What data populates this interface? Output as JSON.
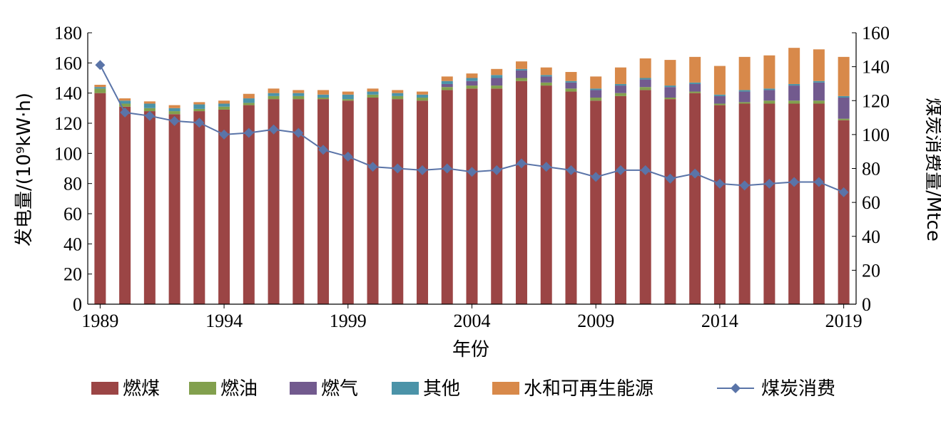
{
  "chart_data": {
    "type": "bar",
    "stacked": true,
    "xlabel": "年份",
    "ylabel": "发电量/(10⁹kW·h)",
    "y2label": "煤炭消费量/Mtce",
    "ylim": [
      0,
      180
    ],
    "y2lim": [
      0,
      160
    ],
    "yticks": [
      0,
      20,
      40,
      60,
      80,
      100,
      120,
      140,
      160,
      180
    ],
    "y2ticks": [
      0,
      20,
      40,
      60,
      80,
      100,
      120,
      140,
      160
    ],
    "xtick_labels": [
      "1989",
      "1994",
      "1999",
      "2004",
      "2009",
      "2014",
      "2019"
    ],
    "grid": false,
    "legend_position": "bottom",
    "years": [
      1989,
      1990,
      1991,
      1992,
      1993,
      1994,
      1995,
      1996,
      1997,
      1998,
      1999,
      2000,
      2001,
      2002,
      2003,
      2004,
      2005,
      2006,
      2007,
      2008,
      2009,
      2010,
      2011,
      2012,
      2013,
      2014,
      2015,
      2016,
      2017,
      2018,
      2019
    ],
    "series": [
      {
        "name": "燃煤",
        "color": "#9b4545",
        "values": [
          140,
          131,
          128,
          126,
          128,
          129,
          132,
          136,
          136,
          136,
          135,
          137,
          136,
          135,
          142,
          143,
          143,
          148,
          145,
          141,
          135,
          138,
          142,
          136,
          140,
          132,
          133,
          133,
          133,
          133,
          122
        ]
      },
      {
        "name": "燃油",
        "color": "#82a04e",
        "values": [
          3,
          2,
          2,
          2,
          1.5,
          2,
          1.5,
          2,
          2,
          1,
          1,
          2,
          2,
          2,
          2,
          2,
          2,
          2,
          2,
          2,
          2,
          2,
          2,
          1,
          1,
          1,
          1,
          2,
          2,
          2,
          1
        ]
      },
      {
        "name": "燃气",
        "color": "#725a8e",
        "values": [
          0,
          0,
          0,
          0,
          0,
          0,
          0,
          0,
          0,
          0,
          0,
          0,
          0,
          0,
          2,
          3,
          5,
          5,
          4,
          4,
          5,
          5,
          5,
          7,
          5,
          5,
          7,
          7,
          10,
          12,
          14
        ]
      },
      {
        "name": "其他",
        "color": "#4b93a8",
        "values": [
          1,
          2,
          3,
          2,
          3,
          2,
          3,
          2,
          2,
          2,
          3,
          2,
          2,
          2,
          2,
          2,
          2,
          1,
          1,
          1,
          1,
          1,
          1,
          1,
          1,
          1,
          1,
          1,
          1,
          1,
          1
        ]
      },
      {
        "name": "水和可再生能源",
        "color": "#d8894a",
        "values": [
          1.5,
          1.5,
          1.5,
          2,
          1.5,
          2,
          3,
          3,
          2,
          3,
          2,
          2,
          2,
          2,
          3,
          3,
          4,
          5,
          5,
          6,
          8,
          11,
          13,
          17,
          17,
          19,
          22,
          22,
          24,
          21,
          26
        ]
      }
    ],
    "line_series": {
      "name": "煤炭消费",
      "color": "#5a74a8",
      "axis": "right",
      "values": [
        141,
        113,
        111,
        108,
        107,
        100,
        101,
        103,
        101,
        91,
        87,
        81,
        80,
        79,
        80,
        78,
        79,
        83,
        81,
        79,
        75,
        79,
        79,
        74,
        77,
        71,
        70,
        71,
        72,
        72,
        66
      ]
    }
  }
}
